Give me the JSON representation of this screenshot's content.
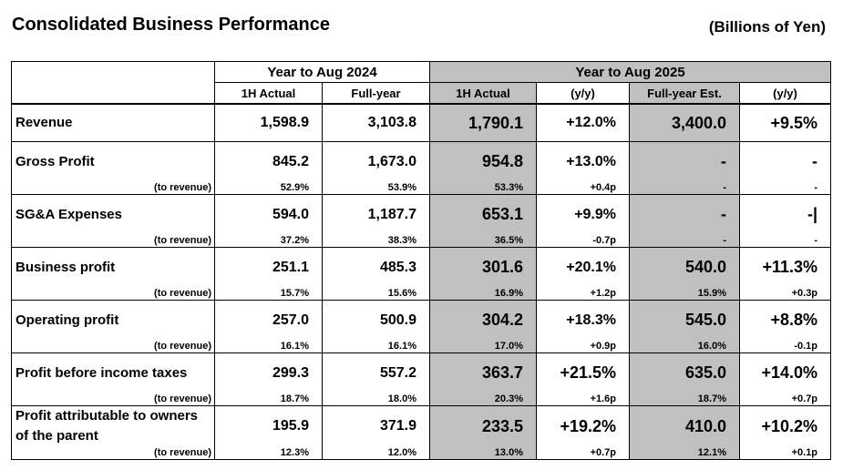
{
  "title": "Consolidated Business Performance",
  "unit": "(Billions of Yen)",
  "header": {
    "period_2024": "Year to Aug 2024",
    "period_2025": "Year to Aug 2025",
    "cols": [
      "1H Actual",
      "Full-year",
      "1H Actual",
      "(y/y)",
      "Full-year Est.",
      "(y/y)"
    ]
  },
  "to_revenue_label": "(to revenue)",
  "rows": [
    {
      "label": "Revenue",
      "v": [
        "1,598.9",
        "3,103.8",
        "1,790.1",
        "+12.0%",
        "3,400.0",
        "+9.5%"
      ]
    },
    {
      "label": "Gross Profit",
      "v": [
        "845.2",
        "1,673.0",
        "954.8",
        "+13.0%",
        "-",
        "-"
      ],
      "r": [
        "52.9%",
        "53.9%",
        "53.3%",
        "+0.4p",
        "-",
        "-"
      ]
    },
    {
      "label": "SG&A Expenses",
      "v": [
        "594.0",
        "1,187.7",
        "653.1",
        "+9.9%",
        "-",
        "-|"
      ],
      "r": [
        "37.2%",
        "38.3%",
        "36.5%",
        "-0.7p",
        "-",
        "-"
      ]
    },
    {
      "label": "Business profit",
      "v": [
        "251.1",
        "485.3",
        "301.6",
        "+20.1%",
        "540.0",
        "+11.3%"
      ],
      "r": [
        "15.7%",
        "15.6%",
        "16.9%",
        "+1.2p",
        "15.9%",
        "+0.3p"
      ]
    },
    {
      "label": "Operating profit",
      "v": [
        "257.0",
        "500.9",
        "304.2",
        "+18.3%",
        "545.0",
        "+8.8%"
      ],
      "r": [
        "16.1%",
        "16.1%",
        "17.0%",
        "+0.9p",
        "16.0%",
        "-0.1p"
      ]
    },
    {
      "label": "Profit before income taxes",
      "v": [
        "299.3",
        "557.2",
        "363.7",
        "+21.5%",
        "635.0",
        "+14.0%"
      ],
      "r": [
        "18.7%",
        "18.0%",
        "20.3%",
        "+1.6p",
        "18.7%",
        "+0.7p"
      ]
    },
    {
      "label": "Profit attributable to owners of the parent",
      "v": [
        "195.9",
        "371.9",
        "233.5",
        "+19.2%",
        "410.0",
        "+10.2%"
      ],
      "r": [
        "12.3%",
        "12.0%",
        "13.0%",
        "+0.7p",
        "12.1%",
        "+0.1p"
      ]
    }
  ]
}
